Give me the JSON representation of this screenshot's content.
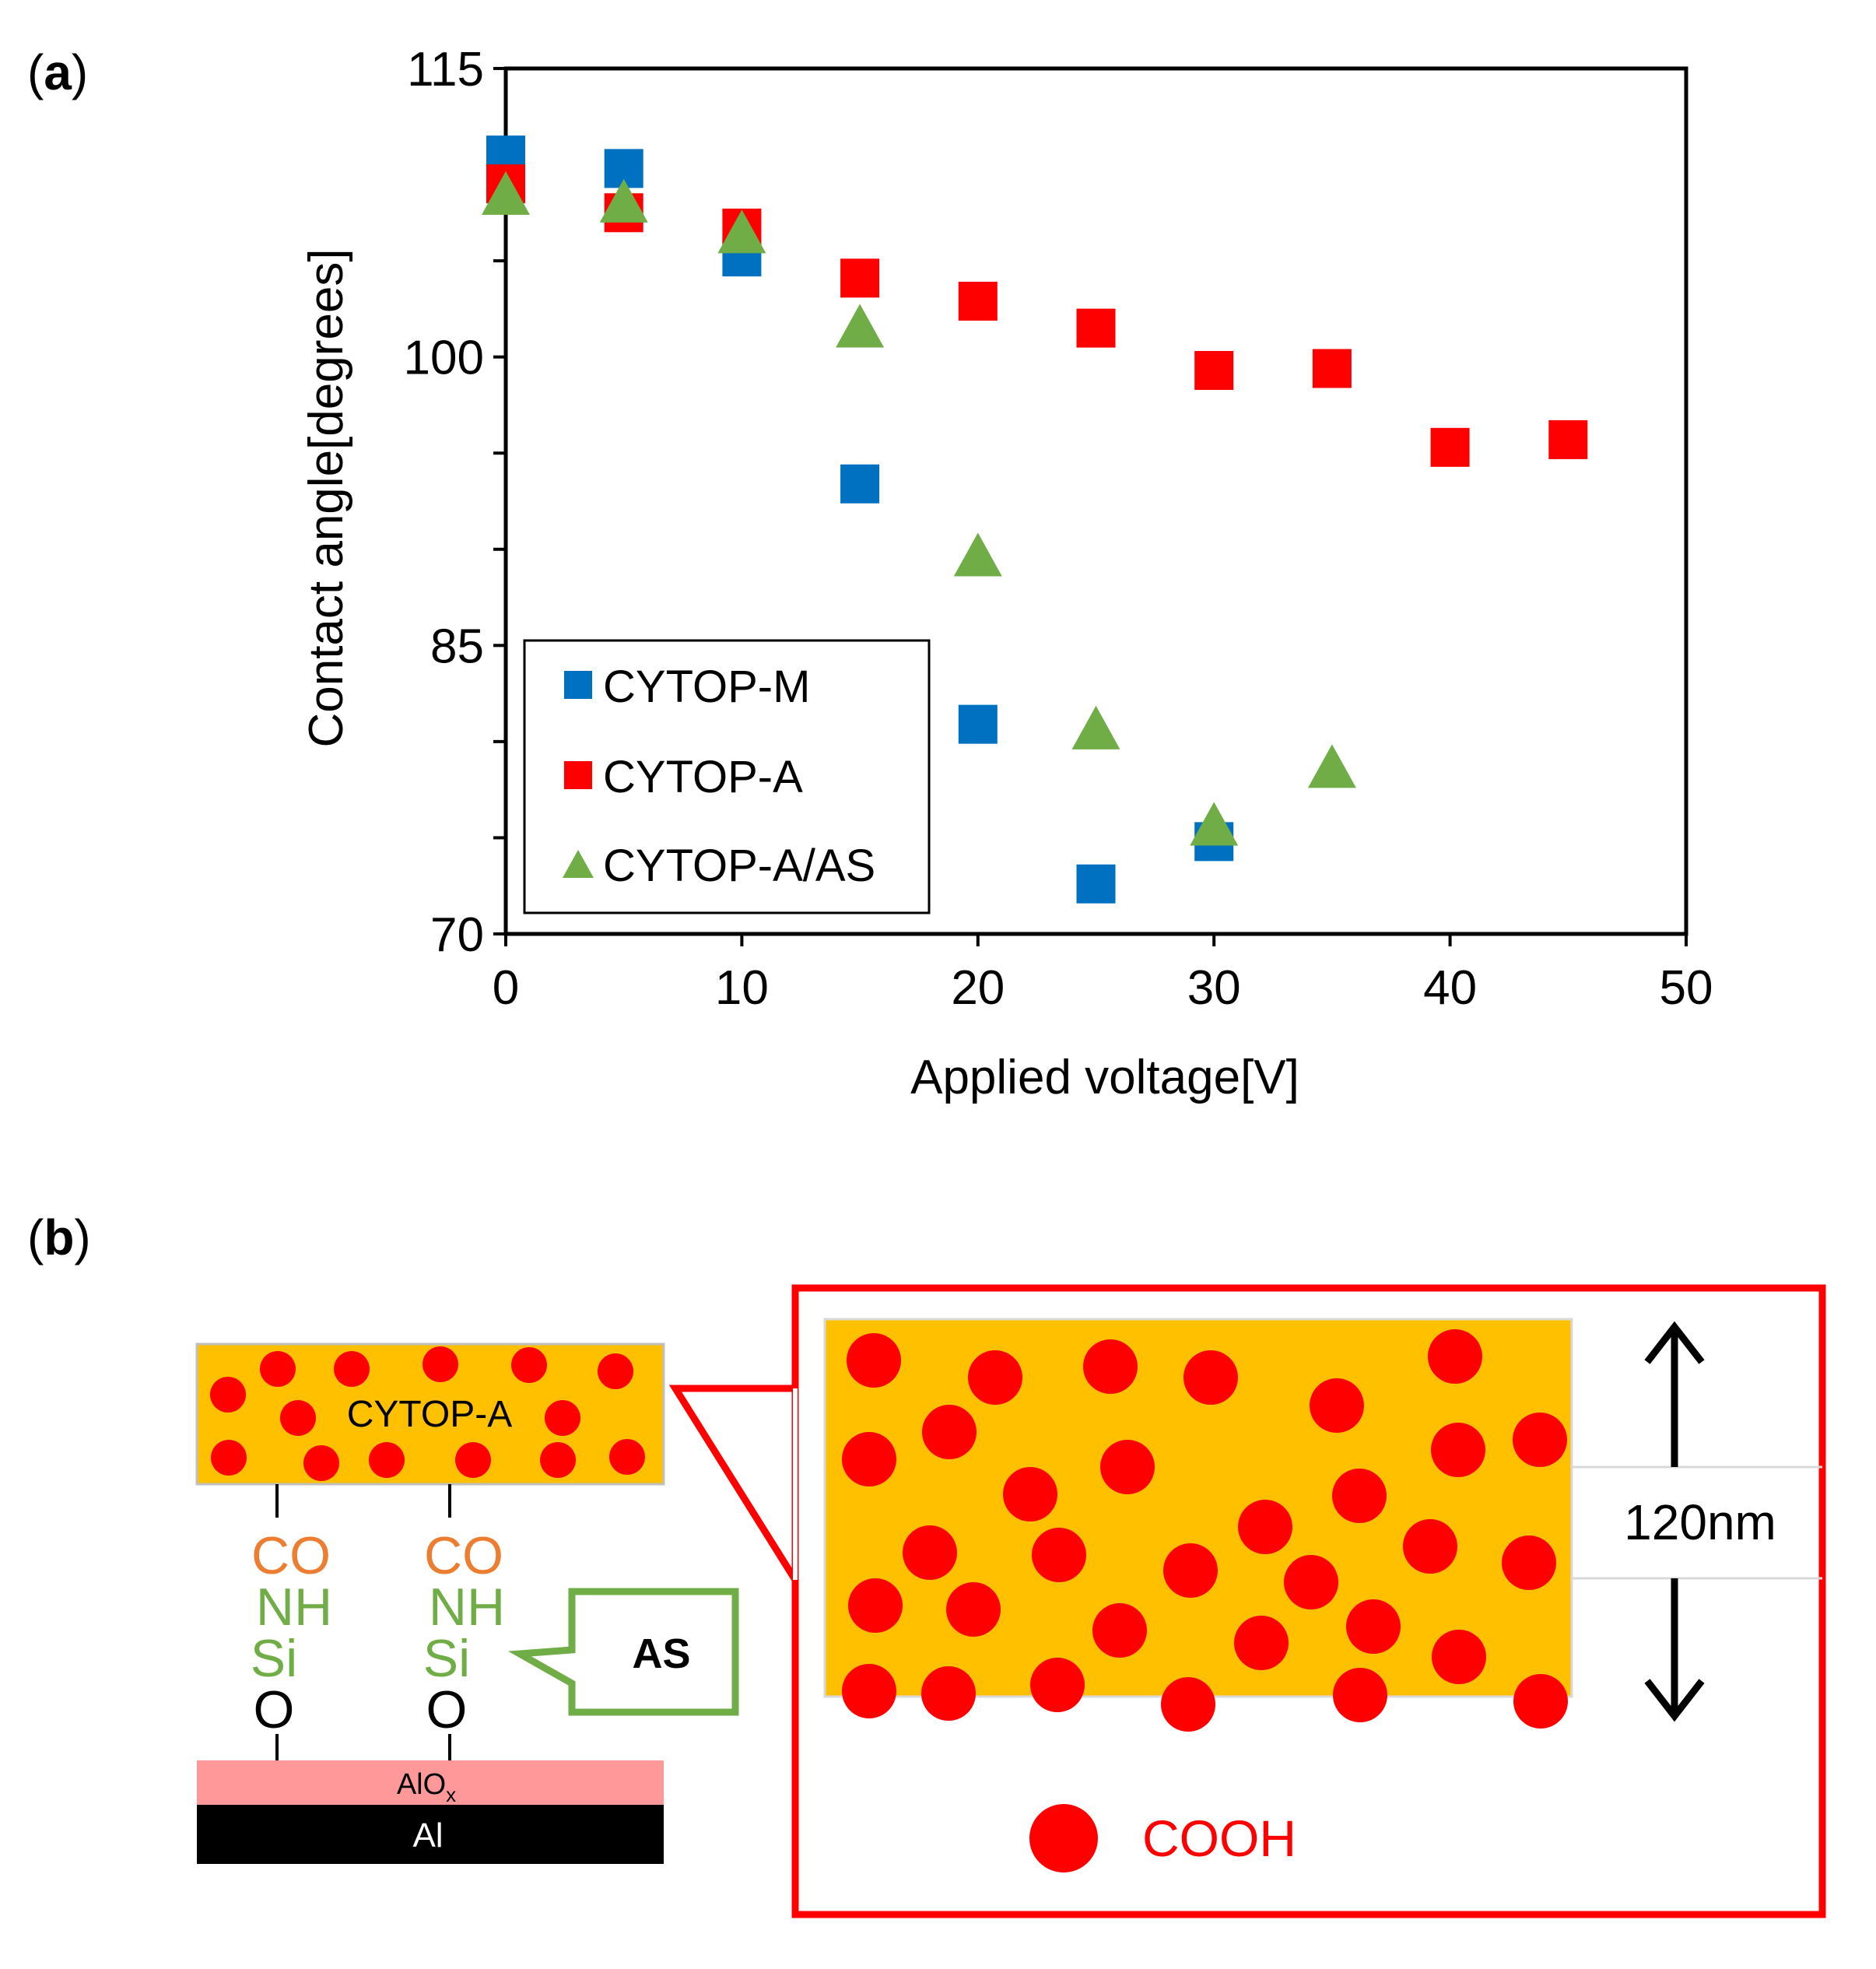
{
  "panel_a": {
    "label_open": "(",
    "label_letter": "a",
    "label_close": ")"
  },
  "panel_b": {
    "label_open": "(",
    "label_letter": "b",
    "label_close": ")"
  },
  "chart_data": {
    "type": "scatter",
    "title": "",
    "xlabel": "Applied voltage[V]",
    "ylabel": "Contact angle[degrees]",
    "xlim": [
      0,
      50
    ],
    "ylim": [
      70,
      115
    ],
    "xticks": [
      0,
      10,
      20,
      30,
      40,
      50
    ],
    "yticks": [
      70,
      85,
      100,
      115
    ],
    "y_minor_step": 5,
    "grid": false,
    "legend_position": "bottom-left",
    "series": [
      {
        "name": "CYTOP-M",
        "marker": "square",
        "color": "#0070c0",
        "x": [
          0,
          5,
          10,
          15,
          20,
          25,
          30
        ],
        "y": [
          110.5,
          109.8,
          105.2,
          93.4,
          80.9,
          72.6,
          74.8
        ]
      },
      {
        "name": "CYTOP-A",
        "marker": "square",
        "color": "#ff0000",
        "x": [
          0,
          5,
          10,
          15,
          20,
          25,
          30,
          35,
          40,
          45
        ],
        "y": [
          109.0,
          107.5,
          106.7,
          104.1,
          102.9,
          101.5,
          99.3,
          99.4,
          95.3,
          95.7
        ]
      },
      {
        "name": "CYTOP-A/AS",
        "marker": "triangle",
        "color": "#70ad47",
        "x": [
          0,
          5,
          10,
          15,
          20,
          25,
          30,
          35
        ],
        "y": [
          108.3,
          107.9,
          106.3,
          101.4,
          89.5,
          80.5,
          75.5,
          78.5
        ]
      }
    ]
  },
  "diagram": {
    "film_label": "CYTOP-A",
    "chain1": {
      "co": "CO",
      "nh": "NH",
      "si": "Si",
      "o": "O"
    },
    "chain2": {
      "co": "CO",
      "nh": "NH",
      "si": "Si",
      "o": "O"
    },
    "as_label": "AS",
    "oxide_label": "AlO",
    "oxide_subscript": "x",
    "metal_label": "Al",
    "thickness_label": "120nm",
    "cooh_label": "COOH",
    "colors": {
      "film": "#ffc000",
      "particle": "#ff0000",
      "oxide": "#ff9999",
      "metal": "#000000",
      "co_text": "#ed7d31",
      "nh_si_text": "#70ad47",
      "as_border": "#70ad47",
      "zoom_border": "#ff0000"
    }
  }
}
